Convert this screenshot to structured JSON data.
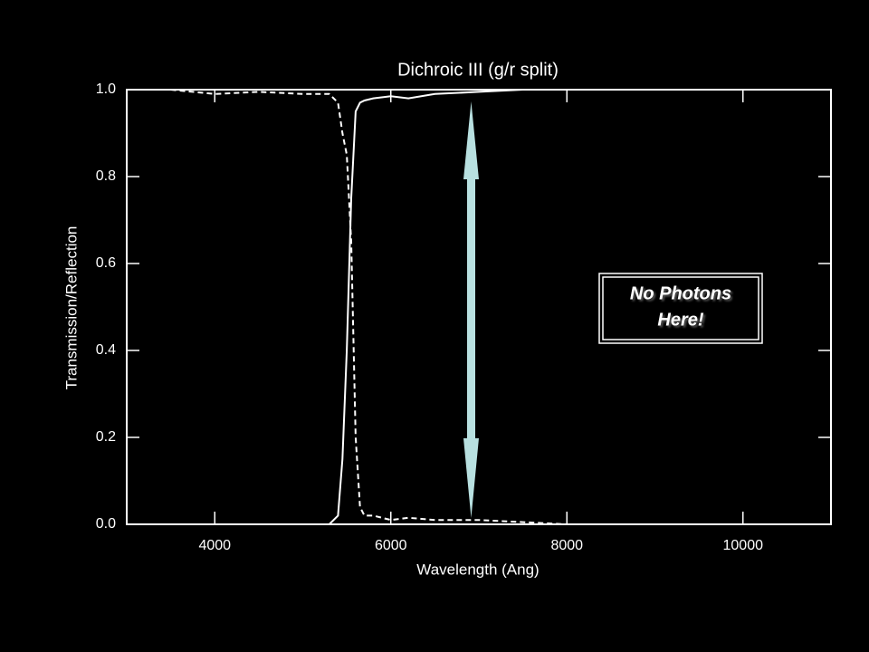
{
  "chart_data": {
    "type": "line",
    "title": "Dichroic III (g/r split)",
    "x_label": "Wavelength (Ang)",
    "y_label": "Transmission/Reflection",
    "x": [
      3500,
      4000,
      4500,
      5000,
      5300,
      5400,
      5450,
      5500,
      5550,
      5600,
      5650,
      5700,
      5800,
      6000,
      6200,
      6500,
      7000,
      7500,
      8000,
      9000,
      10000,
      11000
    ],
    "series": [
      {
        "color": "#ffffff",
        "line_style": "solid",
        "values": [
          null,
          null,
          null,
          null,
          0,
          0.02,
          0.15,
          0.4,
          0.75,
          0.95,
          0.97,
          0.975,
          0.98,
          0.985,
          0.98,
          0.99,
          0.995,
          1.0,
          1.0,
          1.0,
          1.0,
          1.0
        ]
      },
      {
        "color": "#ffffff",
        "line_style": "dashed",
        "values": [
          1.0,
          0.99,
          0.995,
          0.99,
          0.99,
          0.97,
          0.9,
          0.85,
          0.65,
          0.2,
          0.04,
          0.02,
          0.02,
          0.01,
          0.015,
          0.01,
          0.01,
          0.005,
          0.0,
          0.0,
          0.0,
          0.0
        ]
      }
    ],
    "xlim": [
      3000,
      11000
    ],
    "xticks": [
      4000,
      6000,
      8000,
      10000
    ],
    "ylim": [
      0,
      1
    ],
    "yticks": [
      {
        "value": 0,
        "label": "0.0"
      },
      0.2,
      0.4,
      0.6,
      0.8,
      {
        "value": 1,
        "label": "1.0"
      }
    ],
    "grid": false,
    "annotation": [
      "No Photons",
      "Here!"
    ]
  }
}
